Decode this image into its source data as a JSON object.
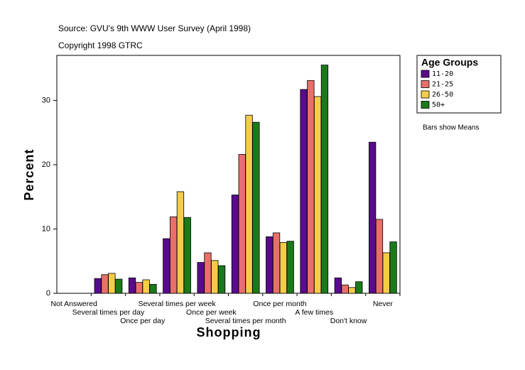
{
  "chart_data": {
    "type": "bar",
    "source": "Source: GVU's 9th WWW User Survey (April 1998)",
    "copyright": "Copyright 1998 GTRC",
    "note": "Bars show Means",
    "x_label": "Shopping",
    "y_label": "Percent",
    "legend_title": "Age Groups",
    "categories": [
      "Not Answered",
      "Several times per day",
      "Once per day",
      "Several times per week",
      "Once per week",
      "Several times per month",
      "Once per month",
      "A few times",
      "Don't know",
      "Never"
    ],
    "series": [
      {
        "name": "11-20",
        "color": "#5a0a8c",
        "values": [
          0,
          2.3,
          2.4,
          8.5,
          4.8,
          15.3,
          8.8,
          31.7,
          2.4,
          23.5
        ]
      },
      {
        "name": "21-25",
        "color": "#e8706a",
        "values": [
          0,
          2.9,
          1.7,
          11.9,
          6.3,
          21.6,
          9.4,
          33.1,
          1.3,
          11.5
        ]
      },
      {
        "name": "26-50",
        "color": "#f5cc4a",
        "values": [
          0,
          3.1,
          2.1,
          15.8,
          5.1,
          27.7,
          7.9,
          30.6,
          0.9,
          6.3
        ]
      },
      {
        "name": "50+",
        "color": "#1a7a1a",
        "values": [
          0,
          2.2,
          1.4,
          11.8,
          4.3,
          26.6,
          8.1,
          35.5,
          1.8,
          8.0
        ]
      }
    ],
    "ylim": [
      0,
      37
    ],
    "yticks": [
      0,
      10,
      20,
      30
    ],
    "legend": "right"
  }
}
